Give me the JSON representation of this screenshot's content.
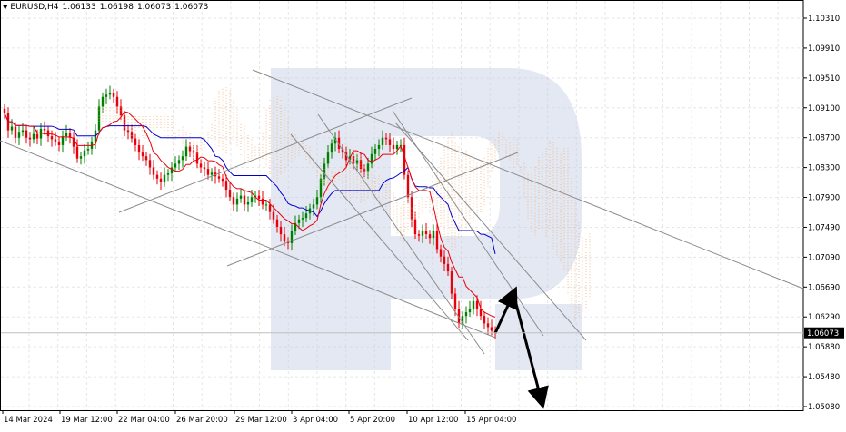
{
  "header": {
    "symbol": "EURUSD,H4",
    "open": "1.06133",
    "high": "1.06198",
    "low": "1.06073",
    "close": "1.06073"
  },
  "chart_data": {
    "type": "candlestick",
    "symbol": "EURUSD",
    "timeframe": "H4",
    "x_tick_labels": [
      "14 Mar 2024",
      "19 Mar 12:00",
      "22 Mar 04:00",
      "26 Mar 20:00",
      "29 Mar 12:00",
      "3 Apr 04:00",
      "5 Apr 20:00",
      "10 Apr 12:00",
      "15 Apr 04:00"
    ],
    "y_tick_labels": [
      "1.10310",
      "1.09910",
      "1.09510",
      "1.09100",
      "1.08700",
      "1.08300",
      "1.07900",
      "1.07490",
      "1.07090",
      "1.06690",
      "1.06290",
      "1.05880",
      "1.05480",
      "1.05080"
    ],
    "ylim": [
      1.0508,
      1.1031
    ],
    "current_price": "1.06073",
    "price_path": [
      [
        1.0903,
        1.088,
        1.0885,
        1.087,
        1.0878,
        1.088,
        1.087,
        1.0868,
        1.0875,
        1.0869,
        1.0882,
        1.088,
        1.0872,
        1.0868,
        1.0865
      ],
      [
        1.086,
        1.0872,
        1.0877,
        1.087,
        1.0858,
        1.0842,
        1.0845,
        1.0853,
        1.0855,
        1.0865,
        1.088,
        1.0912,
        1.0925,
        1.0928,
        1.093
      ],
      [
        1.0925,
        1.0912,
        1.09,
        1.088,
        1.0878,
        1.0869,
        1.086,
        1.085,
        1.0845,
        1.084,
        1.083,
        1.082,
        1.0815,
        1.081,
        1.082
      ],
      [
        1.0822,
        1.083,
        1.0835,
        1.084,
        1.0845,
        1.0858,
        1.0852,
        1.085,
        1.0835,
        1.083,
        1.0828,
        1.082,
        1.0823,
        1.0818,
        1.0815
      ],
      [
        1.0812,
        1.08,
        1.079,
        1.078,
        1.0788,
        1.0792,
        1.078,
        1.0783,
        1.079,
        1.0792,
        1.0788,
        1.078,
        1.078,
        1.077,
        1.076
      ],
      [
        1.075,
        1.074,
        1.073,
        1.0728,
        1.0745,
        1.0755,
        1.076,
        1.0762,
        1.0768,
        1.0775,
        1.078,
        1.079,
        1.0815,
        1.0835,
        1.085
      ],
      [
        1.0862,
        1.087,
        1.0855,
        1.085,
        1.084,
        1.0845,
        1.0835,
        1.084,
        1.0828,
        1.0825,
        1.0835,
        1.0848,
        1.0855,
        1.086,
        1.087
      ],
      [
        1.0868,
        1.086,
        1.0855,
        1.086,
        1.086,
        1.082,
        1.079,
        1.076,
        1.074,
        1.0738,
        1.0745,
        1.074,
        1.0735,
        1.0745,
        1.072
      ],
      [
        1.071,
        1.07,
        1.069,
        1.066,
        1.064,
        1.062,
        1.063,
        1.0635,
        1.064,
        1.065,
        1.064,
        1.063,
        1.062,
        1.0615,
        1.061,
        1.0607
      ]
    ],
    "indicators": [
      {
        "name": "Tenkan-sen",
        "color": "#e8000b"
      },
      {
        "name": "Kijun-sen",
        "color": "#0000cd"
      },
      {
        "name": "Kumo cloud",
        "color": "#f4a460"
      }
    ],
    "forecast_arrows": [
      {
        "from": 1.0607,
        "to": 1.066,
        "direction": "up"
      },
      {
        "from": 1.066,
        "to": 1.0508,
        "direction": "down"
      }
    ],
    "watermark": "R",
    "colors": {
      "bull": "#008000",
      "bear": "#e8000b",
      "grid": "#e6e6e6",
      "trendline": "#8c8c8c",
      "tenkan": "#e8000b",
      "kijun": "#0000cd",
      "cloud": "#f4a460",
      "watermark": "#c3cde5",
      "price_tag_bg": "#000000",
      "price_tag_text": "#ffffff"
    },
    "grid": true
  }
}
